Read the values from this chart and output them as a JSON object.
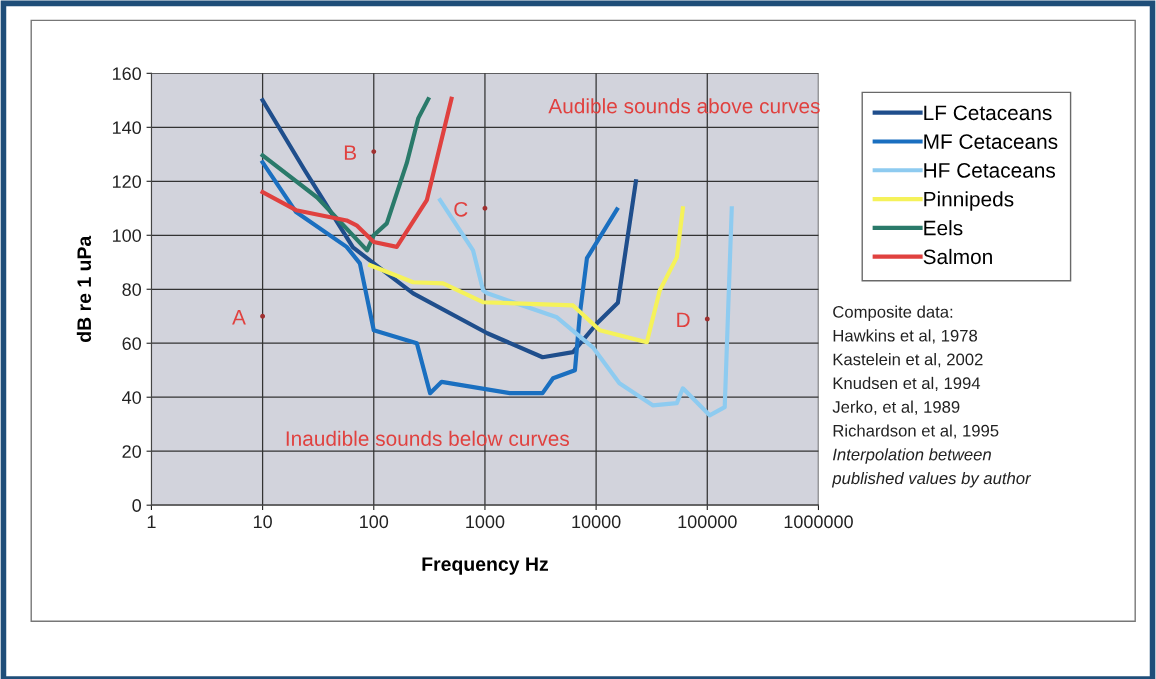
{
  "chart_data": {
    "type": "line",
    "xlabel": "Frequency Hz",
    "ylabel": "dB re 1 uPa",
    "log": "x",
    "xlim": [
      1,
      1000000
    ],
    "xticks": [
      1,
      10,
      100,
      1000,
      10000,
      100000,
      1000000
    ],
    "ylim": [
      0,
      160
    ],
    "yticks": [
      0,
      20,
      40,
      60,
      80,
      100,
      120,
      140,
      160
    ],
    "grid": true,
    "legend": "right",
    "marker": "none",
    "line_style": "solid",
    "series": [
      {
        "name": "LF Cetaceans",
        "color": "#1f4e8c",
        "x": [
          10,
          24,
          65,
          100,
          226,
          1050,
          3300,
          6200,
          10200,
          15700,
          22800
        ],
        "values": [
          150,
          124,
          95.5,
          89.6,
          78.5,
          63.7,
          54.8,
          56.7,
          67.4,
          75,
          120
        ]
      },
      {
        "name": "MF Cetaceans",
        "color": "#1a6fc0",
        "x": [
          10,
          20,
          57,
          75,
          100,
          244,
          321,
          408,
          1680,
          3300,
          4100,
          6450,
          7150,
          8270,
          15400
        ],
        "values": [
          127,
          108.6,
          95.7,
          89.6,
          64.8,
          60,
          41.5,
          45.7,
          41.5,
          41.5,
          47,
          50,
          71,
          91.5,
          109.6
        ]
      },
      {
        "name": "HF Cetaceans",
        "color": "#8ecbf0",
        "x": [
          395,
          782,
          962,
          1050,
          4440,
          9340,
          16200,
          32300,
          53200,
          60300,
          105000,
          143500,
          166000
        ],
        "values": [
          113,
          94.4,
          79.6,
          78.5,
          69.6,
          58.5,
          45.2,
          37,
          37.8,
          43.3,
          33.3,
          36.3,
          110
        ]
      },
      {
        "name": "Pinnipeds",
        "color": "#f5f25a",
        "x": [
          93,
          226,
          420,
          960,
          6200,
          10800,
          28600,
          37400,
          53200,
          60300
        ],
        "values": [
          88.9,
          82.6,
          82.2,
          75.2,
          74,
          64.8,
          60.4,
          79.6,
          91.8,
          110
        ]
      },
      {
        "name": "Eels",
        "color": "#2a7a6a",
        "x": [
          10,
          31,
          87,
          100,
          131,
          198,
          251,
          309
        ],
        "values": [
          129.6,
          114,
          94.4,
          100,
          104.4,
          126.7,
          143.3,
          150.4
        ]
      },
      {
        "name": "Salmon",
        "color": "#e0413f",
        "x": [
          10,
          20,
          57,
          70,
          100,
          161,
          300,
          500
        ],
        "values": [
          116,
          109.3,
          105.5,
          103.7,
          97.5,
          95.7,
          113,
          150.6
        ]
      }
    ],
    "annotations": [
      {
        "text": "A",
        "x": 10,
        "y": 70
      },
      {
        "text": "B",
        "x": 100,
        "y": 131
      },
      {
        "text": "C",
        "x": 1000,
        "y": 110
      },
      {
        "text": "D",
        "x": 100000,
        "y": 69
      },
      "Audible sounds above curves",
      "Inaudible sounds below curves",
      "Composite data:",
      "Hawkins et al, 1978",
      "Kastelein et al, 2002",
      "Knudsen et al, 1994",
      "Jerko, et al, 1989",
      "Richardson et al, 1995",
      "Interpolation between",
      "published values by author"
    ]
  }
}
